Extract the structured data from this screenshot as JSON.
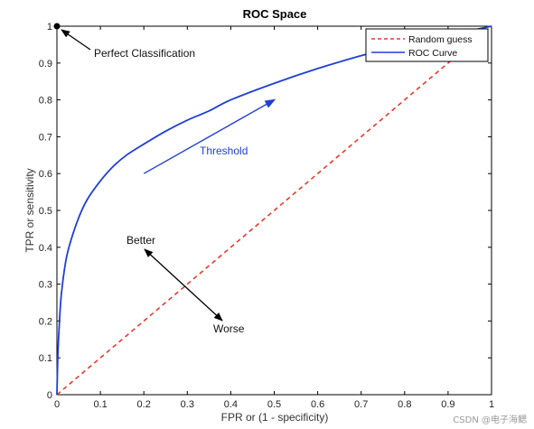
{
  "chart_data": {
    "type": "line",
    "title": "ROC Space",
    "xlabel": "FPR or (1 - specificity)",
    "ylabel": "TPR or sensitivity",
    "xlim": [
      0,
      1
    ],
    "ylim": [
      0,
      1
    ],
    "xticks": [
      "0",
      "0.1",
      "0.2",
      "0.3",
      "0.4",
      "0.5",
      "0.6",
      "0.7",
      "0.8",
      "0.9",
      "1"
    ],
    "yticks": [
      "0",
      "0.1",
      "0.2",
      "0.3",
      "0.4",
      "0.5",
      "0.6",
      "0.7",
      "0.8",
      "0.9",
      "1"
    ],
    "grid": false,
    "legend_position": "top-right",
    "series": [
      {
        "name": "Random guess",
        "style": "dashed",
        "color": "#e8392f",
        "x": [
          0,
          1
        ],
        "y": [
          0,
          1
        ]
      },
      {
        "name": "ROC Curve",
        "style": "solid",
        "color": "#1f3fd6",
        "x": [
          0,
          0.002,
          0.005,
          0.01,
          0.02,
          0.03,
          0.05,
          0.07,
          0.1,
          0.13,
          0.16,
          0.2,
          0.25,
          0.3,
          0.35,
          0.4,
          0.5,
          0.6,
          0.7,
          0.8,
          0.9,
          1.0
        ],
        "y": [
          0,
          0.1,
          0.18,
          0.27,
          0.36,
          0.41,
          0.48,
          0.53,
          0.58,
          0.62,
          0.65,
          0.68,
          0.715,
          0.745,
          0.77,
          0.8,
          0.845,
          0.885,
          0.92,
          0.95,
          0.975,
          1.0
        ]
      }
    ],
    "annotations": {
      "perfect_point": {
        "text": "Perfect Classification",
        "x": 0,
        "y": 1
      },
      "threshold": {
        "text": "Threshold",
        "color": "#1f3fd6",
        "arrow_from": [
          0.2,
          0.6
        ],
        "arrow_to": [
          0.5,
          0.8
        ]
      },
      "better": {
        "text": "Better"
      },
      "worse": {
        "text": "Worse"
      }
    }
  },
  "watermark": "CSDN @电子海鳃"
}
